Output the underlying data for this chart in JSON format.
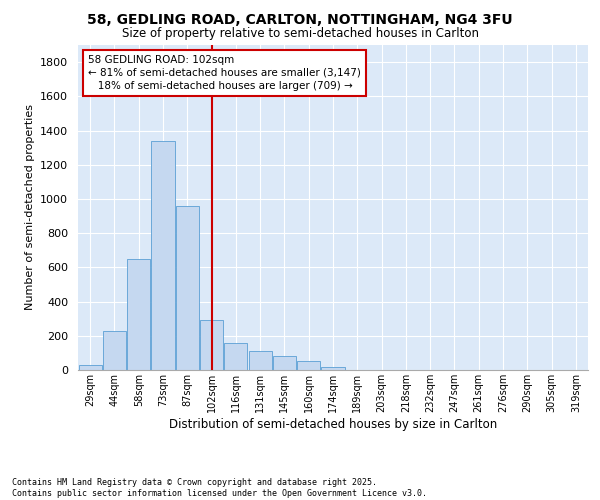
{
  "title_line1": "58, GEDLING ROAD, CARLTON, NOTTINGHAM, NG4 3FU",
  "title_line2": "Size of property relative to semi-detached houses in Carlton",
  "xlabel": "Distribution of semi-detached houses by size in Carlton",
  "ylabel": "Number of semi-detached properties",
  "categories": [
    "29sqm",
    "44sqm",
    "58sqm",
    "73sqm",
    "87sqm",
    "102sqm",
    "116sqm",
    "131sqm",
    "145sqm",
    "160sqm",
    "174sqm",
    "189sqm",
    "203sqm",
    "218sqm",
    "232sqm",
    "247sqm",
    "261sqm",
    "276sqm",
    "290sqm",
    "305sqm",
    "319sqm"
  ],
  "values": [
    30,
    230,
    650,
    1340,
    960,
    290,
    160,
    110,
    80,
    50,
    20,
    0,
    0,
    0,
    0,
    0,
    0,
    0,
    0,
    0,
    0
  ],
  "bar_color": "#c5d8f0",
  "bar_edge_color": "#5a9fd4",
  "vline_index": 5,
  "vline_color": "#cc0000",
  "annotation_text": "58 GEDLING ROAD: 102sqm\n← 81% of semi-detached houses are smaller (3,147)\n   18% of semi-detached houses are larger (709) →",
  "annotation_box_color": "#ffffff",
  "annotation_box_edge": "#cc0000",
  "ylim": [
    0,
    1900
  ],
  "yticks": [
    0,
    200,
    400,
    600,
    800,
    1000,
    1200,
    1400,
    1600,
    1800
  ],
  "background_color": "#dce9f8",
  "grid_color": "#ffffff",
  "footer_line1": "Contains HM Land Registry data © Crown copyright and database right 2025.",
  "footer_line2": "Contains public sector information licensed under the Open Government Licence v3.0."
}
